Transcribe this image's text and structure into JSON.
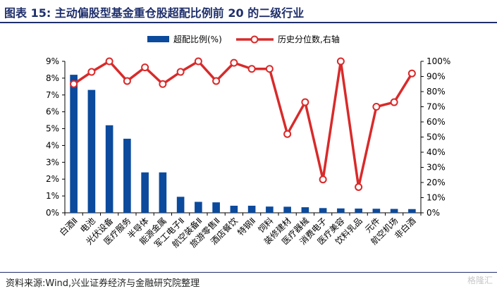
{
  "header": {
    "title": "图表 15:  主动偏股型基金重仓股超配比例前 20 的二级行业"
  },
  "footer": {
    "source": "资料来源:Wind,兴业证券经济与金融研究院整理",
    "watermark": "格隆汇"
  },
  "chart_data": {
    "type": "bar",
    "categories": [
      "白酒Ⅱ",
      "电池",
      "光伏设备",
      "医疗服务",
      "半导体",
      "能源金属",
      "军工电子Ⅱ",
      "航空装备Ⅱ",
      "旅游零售Ⅱ",
      "酒店餐饮",
      "特钢Ⅱ",
      "饲料",
      "装修建材",
      "医疗器械",
      "消费电子",
      "医疗美容",
      "饮料乳品",
      "元件",
      "航空机场",
      "非白酒"
    ],
    "series": [
      {
        "name": "超配比例(%)",
        "type": "bar",
        "axis": "left",
        "color": "#0b4a9c",
        "values": [
          8.2,
          7.3,
          5.2,
          4.4,
          2.4,
          2.4,
          0.95,
          0.65,
          0.62,
          0.42,
          0.42,
          0.37,
          0.36,
          0.33,
          0.28,
          0.26,
          0.25,
          0.24,
          0.23,
          0.22
        ]
      },
      {
        "name": "历史分位数,右轴",
        "type": "line",
        "axis": "right",
        "color": "#d92a2a",
        "values": [
          85,
          93,
          100,
          87,
          96,
          85,
          93,
          100,
          87,
          99,
          95,
          95,
          52,
          73,
          22,
          100,
          17,
          70,
          73,
          92
        ]
      }
    ],
    "y_left": {
      "ylim": [
        0,
        9
      ],
      "ticks": [
        "0%",
        "1%",
        "2%",
        "3%",
        "4%",
        "5%",
        "6%",
        "7%",
        "8%",
        "9%"
      ]
    },
    "y_right": {
      "ylim": [
        0,
        100
      ],
      "ticks": [
        "0%",
        "10%",
        "20%",
        "30%",
        "40%",
        "50%",
        "60%",
        "70%",
        "80%",
        "90%",
        "100%"
      ]
    },
    "legend_position": "top-center",
    "grid": false
  }
}
